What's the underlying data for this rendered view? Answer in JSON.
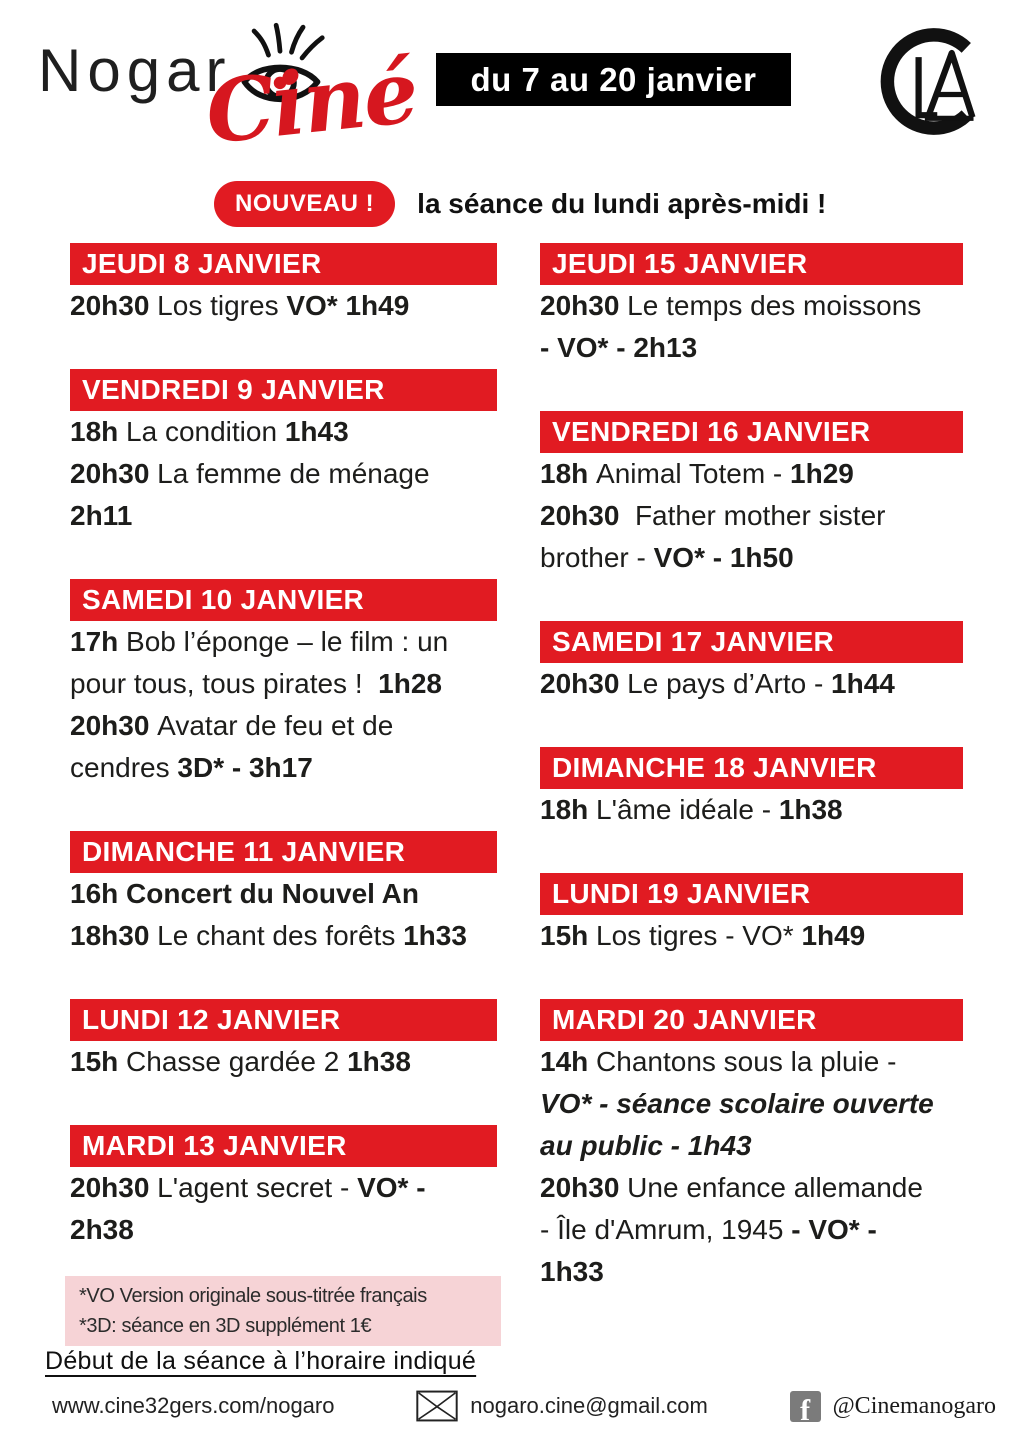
{
  "header": {
    "logo_text": "Nogar",
    "logo_script": "Ciné",
    "date_banner": "du 7 au 20 janvier"
  },
  "announcement": {
    "badge": "NOUVEAU !",
    "text": "la séance du lundi après-midi !"
  },
  "schedule": {
    "columns": [
      {
        "blocks": [
          {
            "day": "JEUDI 8 JANVIER",
            "lines": [
              [
                {
                  "t": "20h30 ",
                  "f": "b"
                },
                {
                  "t": "Los tigres ",
                  "f": ""
                },
                {
                  "t": "VO* 1h49",
                  "f": "b"
                }
              ]
            ]
          },
          {
            "day": "VENDREDI 9 JANVIER",
            "lines": [
              [
                {
                  "t": "18h ",
                  "f": "b"
                },
                {
                  "t": "La condition ",
                  "f": ""
                },
                {
                  "t": "1h43",
                  "f": "b"
                }
              ],
              [
                {
                  "t": "20h30 ",
                  "f": "b"
                },
                {
                  "t": "La femme de ménage",
                  "f": ""
                }
              ],
              [
                {
                  "t": "2h11",
                  "f": "b"
                }
              ]
            ]
          },
          {
            "day": "SAMEDI 10 JANVIER",
            "lines": [
              [
                {
                  "t": "17h ",
                  "f": "b"
                },
                {
                  "t": "Bob l’éponge – le film : un",
                  "f": ""
                }
              ],
              [
                {
                  "t": "pour tous, tous pirates !  ",
                  "f": ""
                },
                {
                  "t": "1h28",
                  "f": "b"
                }
              ],
              [
                {
                  "t": "20h30 ",
                  "f": "b"
                },
                {
                  "t": "Avatar de feu et de",
                  "f": ""
                }
              ],
              [
                {
                  "t": "cendres ",
                  "f": ""
                },
                {
                  "t": "3D* - 3h17",
                  "f": "b"
                }
              ]
            ]
          },
          {
            "day": "DIMANCHE 11 JANVIER",
            "lines": [
              [
                {
                  "t": "16h Concert du Nouvel An",
                  "f": "b"
                }
              ],
              [
                {
                  "t": "18h30 ",
                  "f": "b"
                },
                {
                  "t": "Le chant des forêts ",
                  "f": ""
                },
                {
                  "t": "1h33",
                  "f": "b"
                }
              ]
            ]
          },
          {
            "day": "LUNDI 12 JANVIER",
            "lines": [
              [
                {
                  "t": "15h ",
                  "f": "b"
                },
                {
                  "t": "Chasse gardée 2 ",
                  "f": ""
                },
                {
                  "t": "1h38",
                  "f": "b"
                }
              ]
            ]
          },
          {
            "day": "MARDI 13 JANVIER",
            "lines": [
              [
                {
                  "t": "20h30 ",
                  "f": "b"
                },
                {
                  "t": "L'agent secret - ",
                  "f": ""
                },
                {
                  "t": "VO* -",
                  "f": "b"
                }
              ],
              [
                {
                  "t": "2h38",
                  "f": "b"
                }
              ]
            ]
          }
        ]
      },
      {
        "blocks": [
          {
            "day": "JEUDI 15 JANVIER",
            "lines": [
              [
                {
                  "t": "20h30 ",
                  "f": "b"
                },
                {
                  "t": "Le temps des moissons",
                  "f": ""
                }
              ],
              [
                {
                  "t": "- VO* - 2h13",
                  "f": "b"
                }
              ]
            ]
          },
          {
            "day": "VENDREDI 16 JANVIER",
            "lines": [
              [
                {
                  "t": "18h ",
                  "f": "b"
                },
                {
                  "t": "Animal Totem - ",
                  "f": ""
                },
                {
                  "t": "1h29",
                  "f": "b"
                }
              ],
              [
                {
                  "t": "20h30  ",
                  "f": "b"
                },
                {
                  "t": "Father mother sister",
                  "f": ""
                }
              ],
              [
                {
                  "t": "brother - ",
                  "f": ""
                },
                {
                  "t": "VO* - 1h50",
                  "f": "b"
                }
              ]
            ]
          },
          {
            "day": "SAMEDI 17 JANVIER",
            "lines": [
              [
                {
                  "t": "20h30 ",
                  "f": "b"
                },
                {
                  "t": "Le pays d’Arto - ",
                  "f": ""
                },
                {
                  "t": "1h44",
                  "f": "b"
                }
              ]
            ]
          },
          {
            "day": "DIMANCHE 18 JANVIER",
            "lines": [
              [
                {
                  "t": "18h ",
                  "f": "b"
                },
                {
                  "t": "L'âme idéale - ",
                  "f": ""
                },
                {
                  "t": "1h38",
                  "f": "b"
                }
              ]
            ]
          },
          {
            "day": "LUNDI 19 JANVIER",
            "lines": [
              [
                {
                  "t": "15h ",
                  "f": "b"
                },
                {
                  "t": "Los tigres - VO* ",
                  "f": ""
                },
                {
                  "t": "1h49",
                  "f": "b"
                }
              ]
            ]
          },
          {
            "day": "MARDI 20 JANVIER",
            "lines": [
              [
                {
                  "t": "14h ",
                  "f": "b"
                },
                {
                  "t": "Chantons sous la pluie -",
                  "f": ""
                }
              ],
              [
                {
                  "t": "VO* - séance scolaire ouverte",
                  "f": "bi"
                }
              ],
              [
                {
                  "t": "au public - 1h43",
                  "f": "bi"
                }
              ],
              [
                {
                  "t": "20h30 ",
                  "f": "b"
                },
                {
                  "t": "Une enfance allemande",
                  "f": ""
                }
              ],
              [
                {
                  "t": "- Île d'Amrum, 1945 ",
                  "f": ""
                },
                {
                  "t": "- VO* -",
                  "f": "b"
                }
              ],
              [
                {
                  "t": "1h33",
                  "f": "b"
                }
              ]
            ]
          }
        ]
      }
    ]
  },
  "notes": {
    "lines": [
      "*VO Version originale sous-titrée français",
      "*3D: séance en 3D supplément 1€"
    ]
  },
  "notice": "Début de la séance à l’horaire indiqué",
  "footer": {
    "website": "www.cine32gers.com/nogaro",
    "email": "nogaro.cine@gmail.com",
    "facebook_handle": "@Cinemanogaro"
  },
  "icons": {
    "logo_eye": "eye-icon",
    "cla": "cla-monogram-icon",
    "email": "envelope-icon",
    "facebook": "facebook-icon"
  },
  "colors": {
    "accent_red": "#e11b22",
    "logo_red": "#d6171f",
    "banner_black": "#000000",
    "note_pink": "#f6d3d6",
    "facebook_gray": "#7b7b7b"
  }
}
